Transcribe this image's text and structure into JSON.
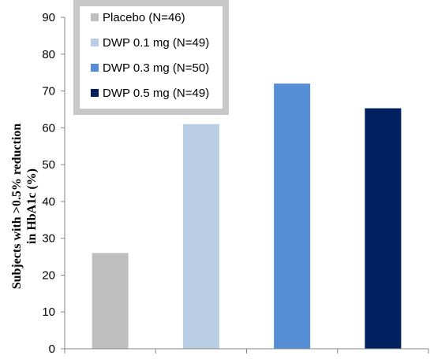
{
  "chart_data": {
    "type": "bar",
    "categories": [
      "Placebo (N=46)",
      "DWP 0.1 mg (N=49)",
      "DWP 0.3 mg (N=50)",
      "DWP 0.5 mg (N=49)"
    ],
    "values": [
      26,
      61,
      72,
      65.3
    ],
    "colors": [
      "#bfbfbf",
      "#b9cde5",
      "#558ed5",
      "#002060"
    ],
    "ylabel_lines": [
      "Subjects with >0.5% reduction",
      "in HbA1c (%)"
    ],
    "xlabel": "",
    "ylim": [
      0,
      90
    ],
    "yticks": [
      0,
      10,
      20,
      30,
      40,
      50,
      60,
      70,
      80,
      90
    ],
    "grid": false,
    "legend": {
      "placement": "top-left",
      "entries": [
        "Placebo (N=46)",
        "DWP 0.1 mg (N=49)",
        "DWP 0.3 mg (N=50)",
        "DWP 0.5 mg (N=49)"
      ]
    }
  }
}
